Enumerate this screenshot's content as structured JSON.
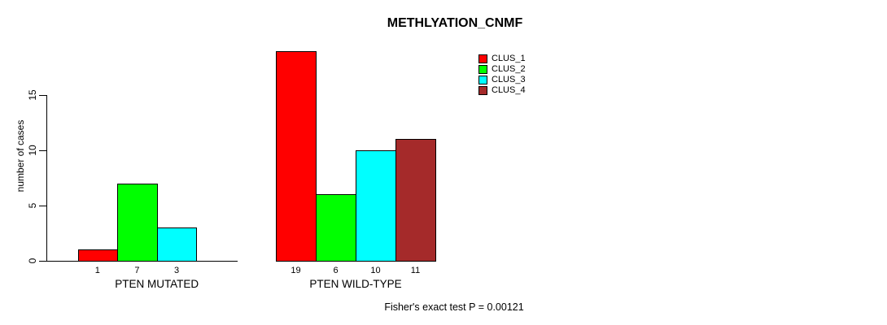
{
  "chart_data": {
    "type": "bar",
    "title": "METHLYATION_CNMF",
    "ylabel": "number of cases",
    "xlabel": "",
    "ylim": [
      0,
      15
    ],
    "yticks": [
      0,
      5,
      10,
      15
    ],
    "grid": false,
    "legend_position": "top-right",
    "legend": [
      {
        "name": "CLUS_1",
        "color": "#FF0000"
      },
      {
        "name": "CLUS_2",
        "color": "#00FF00"
      },
      {
        "name": "CLUS_3",
        "color": "#00FFFF"
      },
      {
        "name": "CLUS_4",
        "color": "#A52A2A"
      }
    ],
    "categories": [
      "PTEN MUTATED",
      "PTEN WILD-TYPE"
    ],
    "series": [
      {
        "name": "CLUS_1",
        "color": "#FF0000",
        "values": [
          1,
          19
        ]
      },
      {
        "name": "CLUS_2",
        "color": "#00FF00",
        "values": [
          7,
          6
        ]
      },
      {
        "name": "CLUS_3",
        "color": "#00FFFF",
        "values": [
          3,
          10
        ]
      },
      {
        "name": "CLUS_4",
        "color": "#A52A2A",
        "values": [
          null,
          11
        ]
      }
    ],
    "bar_value_labels": {
      "PTEN MUTATED": [
        1,
        7,
        3
      ],
      "PTEN WILD-TYPE": [
        19,
        6,
        10,
        11
      ]
    },
    "footer": "Fisher's exact test P = 0.00121"
  }
}
